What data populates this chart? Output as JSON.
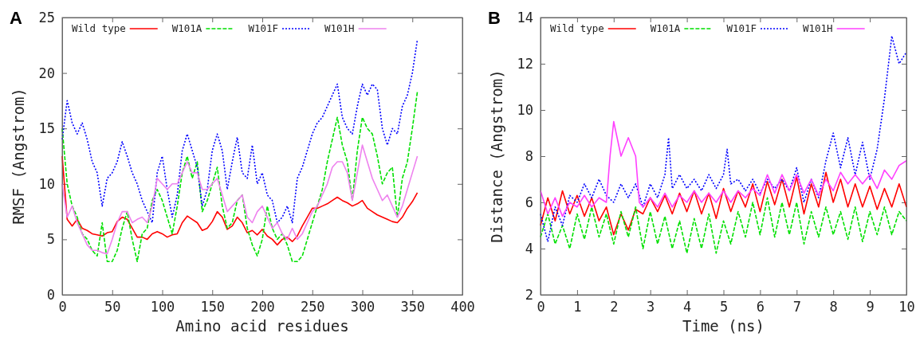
{
  "chart_data": [
    {
      "type": "line",
      "title": "A",
      "xlabel": "Amino acid residues",
      "ylabel": "RMSF (Angstrom)",
      "xlim": [
        0,
        400
      ],
      "xticks": [
        0,
        50,
        100,
        150,
        200,
        250,
        300,
        350,
        400
      ],
      "ylim": [
        0,
        25
      ],
      "yticks": [
        0,
        5,
        10,
        15,
        20,
        25
      ],
      "legend": "top",
      "grid": false,
      "x": [
        0,
        5,
        10,
        15,
        20,
        25,
        30,
        35,
        40,
        45,
        50,
        55,
        60,
        65,
        70,
        75,
        80,
        85,
        90,
        95,
        100,
        105,
        110,
        115,
        120,
        125,
        130,
        135,
        140,
        145,
        150,
        155,
        160,
        165,
        170,
        175,
        180,
        185,
        190,
        195,
        200,
        205,
        210,
        215,
        220,
        225,
        230,
        235,
        240,
        245,
        250,
        255,
        260,
        265,
        270,
        275,
        280,
        285,
        290,
        295,
        300,
        305,
        310,
        315,
        320,
        325,
        330,
        335,
        340,
        345,
        350,
        355
      ],
      "series": [
        {
          "name": "Wild type",
          "color": "#ff0000",
          "line_style": "solid",
          "values": [
            12.5,
            6.8,
            6.2,
            6.8,
            6.0,
            5.8,
            5.5,
            5.4,
            5.3,
            5.6,
            5.7,
            6.6,
            7.0,
            6.8,
            6.0,
            5.2,
            5.2,
            5.0,
            5.5,
            5.7,
            5.5,
            5.2,
            5.4,
            5.5,
            6.5,
            7.1,
            6.8,
            6.5,
            5.8,
            6.0,
            6.6,
            7.5,
            7.0,
            5.9,
            6.2,
            7.0,
            6.5,
            5.6,
            5.8,
            5.4,
            5.9,
            5.3,
            5.0,
            4.5,
            5.0,
            5.2,
            4.8,
            5.3,
            6.2,
            7.0,
            7.8,
            7.8,
            8.0,
            8.2,
            8.5,
            8.8,
            8.5,
            8.3,
            8.0,
            8.2,
            8.5,
            7.8,
            7.5,
            7.2,
            7.0,
            6.8,
            6.6,
            6.5,
            7.0,
            7.8,
            8.4,
            9.2
          ]
        },
        {
          "name": "W101A",
          "color": "#00e000",
          "line_style": "dashed",
          "values": [
            15,
            10,
            8,
            7,
            5.5,
            5,
            4,
            3.5,
            6.5,
            3,
            3,
            4,
            6,
            7.5,
            5,
            3,
            5.5,
            6,
            8.5,
            9.5,
            8.5,
            7,
            5.5,
            8,
            11,
            12.5,
            10.5,
            12,
            7.5,
            8.5,
            10,
            11.5,
            8,
            6,
            6.5,
            8.5,
            9,
            6,
            4.5,
            3.5,
            5,
            8,
            6,
            5,
            5.5,
            4.5,
            3,
            3,
            3.5,
            5,
            6.5,
            8,
            9.5,
            12,
            14,
            16,
            13.5,
            12,
            8.5,
            13,
            16,
            15,
            14.5,
            12.5,
            10,
            11,
            11.5,
            7,
            10.5,
            12,
            15,
            18.3
          ]
        },
        {
          "name": "W101F",
          "color": "#0000ff",
          "line_style": "dotted",
          "values": [
            14,
            17.5,
            15.5,
            14.5,
            15.5,
            14,
            12,
            11,
            8,
            10.5,
            11,
            12,
            13.8,
            12.5,
            11,
            10,
            8.5,
            7.5,
            6.5,
            11,
            12.5,
            9.5,
            7,
            9,
            13,
            14.5,
            13,
            11.5,
            8,
            9.5,
            13,
            14.5,
            13,
            9.5,
            12,
            14.2,
            11,
            10.5,
            13.5,
            10,
            11,
            9,
            8.5,
            6.5,
            7,
            8,
            6.5,
            10.5,
            11.5,
            13,
            14.5,
            15.5,
            16,
            17,
            18,
            19,
            16,
            15,
            14.5,
            17,
            19,
            18,
            19,
            18.5,
            15,
            13.5,
            15,
            14.5,
            17,
            18,
            20,
            23
          ]
        },
        {
          "name": "W101H",
          "color": "#ee82ee",
          "line_style": "solid",
          "values": [
            10,
            7,
            8,
            6.5,
            5.5,
            4.5,
            4,
            4,
            3.8,
            3.7,
            5,
            6.5,
            7.5,
            7.5,
            6.5,
            6.8,
            7,
            6.5,
            8,
            10.5,
            10,
            9.5,
            10,
            10,
            11,
            12,
            11,
            11,
            9.5,
            9.5,
            10,
            10.5,
            9,
            7.5,
            8,
            8.5,
            9,
            7,
            6.5,
            7.5,
            8,
            7,
            6,
            6.5,
            5.5,
            5,
            6,
            5,
            5.5,
            6.5,
            7.5,
            8,
            9,
            10,
            11.5,
            12,
            12,
            11,
            8.5,
            11,
            13.5,
            12,
            10.5,
            9.5,
            8.5,
            9,
            8,
            7,
            8,
            9.5,
            11,
            12.5
          ]
        }
      ]
    },
    {
      "type": "line",
      "title": "B",
      "xlabel": "Time (ns)",
      "ylabel": "Distance (Angstrom)",
      "xlim": [
        0,
        10
      ],
      "xticks": [
        0,
        1,
        2,
        3,
        4,
        5,
        6,
        7,
        8,
        9,
        10
      ],
      "ylim": [
        2,
        14
      ],
      "yticks": [
        2,
        4,
        6,
        8,
        10,
        12,
        14
      ],
      "legend": "top",
      "grid": false,
      "x": [
        0,
        0.2,
        0.4,
        0.6,
        0.8,
        1,
        1.2,
        1.4,
        1.6,
        1.8,
        2,
        2.2,
        2.4,
        2.6,
        2.8,
        3,
        3.2,
        3.4,
        3.6,
        3.8,
        4,
        4.2,
        4.4,
        4.6,
        4.8,
        5,
        5.2,
        5.4,
        5.6,
        5.8,
        6,
        6.2,
        6.4,
        6.6,
        6.8,
        7,
        7.2,
        7.4,
        7.6,
        7.8,
        8,
        8.2,
        8.4,
        8.6,
        8.8,
        9,
        9.2,
        9.4,
        9.6,
        9.8,
        10
      ],
      "series": [
        {
          "name": "Wild type",
          "color": "#ff0000",
          "line_style": "solid",
          "values": [
            5,
            6.2,
            5.2,
            6.5,
            5.5,
            6.3,
            5.4,
            6.2,
            5.2,
            5.8,
            4.6,
            5.5,
            4.8,
            5.7,
            5.5,
            6.2,
            5.6,
            6.3,
            5.5,
            6.4,
            5.6,
            6.5,
            5.5,
            6.4,
            5.3,
            6.6,
            5.6,
            6.5,
            5.8,
            6.8,
            5.6,
            6.9,
            5.9,
            7.0,
            5.8,
            7.1,
            5.5,
            6.8,
            5.8,
            7.3,
            6.0,
            7.0,
            5.8,
            6.8,
            5.8,
            6.7,
            5.7,
            6.6,
            5.8,
            6.8,
            5.8
          ]
        },
        {
          "name": "W101A",
          "color": "#00e000",
          "line_style": "dashed",
          "values": [
            4.5,
            5.5,
            4.2,
            5.0,
            4.0,
            5.5,
            4.4,
            5.8,
            4.5,
            5.5,
            4.2,
            5.6,
            4.5,
            5.8,
            4.0,
            5.6,
            4.2,
            5.4,
            4.0,
            5.2,
            3.8,
            5.3,
            4.0,
            5.5,
            3.8,
            5.2,
            4.2,
            5.6,
            4.5,
            6.0,
            4.6,
            6.2,
            4.5,
            6.0,
            4.6,
            6.0,
            4.2,
            5.6,
            4.5,
            5.8,
            4.6,
            5.6,
            4.4,
            5.8,
            4.3,
            5.6,
            4.6,
            5.8,
            4.6,
            5.6,
            5.2
          ]
        },
        {
          "name": "W101F",
          "color": "#0000ff",
          "line_style": "dotted",
          "x": [
            0,
            0.2,
            0.4,
            0.6,
            0.8,
            1,
            1.2,
            1.4,
            1.6,
            1.8,
            2,
            2.2,
            2.4,
            2.6,
            2.8,
            3,
            3.2,
            3.4,
            3.5,
            3.6,
            3.8,
            4,
            4.2,
            4.4,
            4.6,
            4.8,
            5,
            5.1,
            5.2,
            5.4,
            5.6,
            5.8,
            6,
            6.2,
            6.4,
            6.6,
            6.8,
            7,
            7.2,
            7.4,
            7.6,
            7.8,
            8,
            8.2,
            8.4,
            8.6,
            8.8,
            9,
            9.2,
            9.4,
            9.6,
            9.8,
            10
          ],
          "values": [
            5.5,
            4.3,
            5.8,
            5.0,
            6.3,
            6.0,
            6.8,
            6.2,
            7.0,
            6.3,
            6.0,
            6.8,
            6.2,
            6.8,
            5.8,
            6.8,
            6.2,
            7.2,
            8.8,
            6.6,
            7.2,
            6.6,
            7.0,
            6.5,
            7.2,
            6.6,
            7.2,
            8.3,
            6.8,
            7.0,
            6.5,
            7.0,
            6.4,
            7.0,
            6.6,
            7.0,
            6.5,
            7.5,
            6.0,
            7.0,
            6.2,
            7.8,
            9.0,
            7.5,
            8.8,
            7.2,
            8.6,
            7.0,
            8.3,
            10.5,
            13.2,
            12.0,
            12.5
          ]
        },
        {
          "name": "W101H",
          "color": "#ff40ff",
          "line_style": "solid",
          "x": [
            0,
            0.2,
            0.4,
            0.6,
            0.8,
            1,
            1.2,
            1.4,
            1.6,
            1.8,
            1.9,
            2,
            2.2,
            2.4,
            2.6,
            2.7,
            2.8,
            3,
            3.2,
            3.4,
            3.6,
            3.8,
            4,
            4.2,
            4.4,
            4.6,
            4.8,
            5,
            5.2,
            5.4,
            5.6,
            5.8,
            6,
            6.2,
            6.4,
            6.6,
            6.8,
            7,
            7.2,
            7.4,
            7.6,
            7.8,
            8,
            8.2,
            8.4,
            8.6,
            8.8,
            9,
            9.2,
            9.4,
            9.6,
            9.8,
            10
          ],
          "values": [
            6.5,
            5.5,
            6.2,
            5.4,
            6.0,
            5.8,
            6.3,
            5.8,
            6.2,
            6.0,
            8.0,
            9.5,
            8.0,
            8.8,
            8.0,
            6.0,
            5.8,
            6.2,
            5.8,
            6.4,
            5.8,
            6.3,
            6.0,
            6.5,
            6.0,
            6.4,
            6.0,
            6.5,
            6.0,
            6.5,
            6.2,
            6.6,
            6.3,
            7.2,
            6.4,
            7.2,
            6.5,
            7.2,
            6.4,
            7.0,
            6.3,
            7.0,
            6.5,
            7.3,
            6.8,
            7.2,
            6.8,
            7.2,
            6.6,
            7.4,
            7.0,
            7.6,
            7.8
          ]
        }
      ]
    }
  ]
}
